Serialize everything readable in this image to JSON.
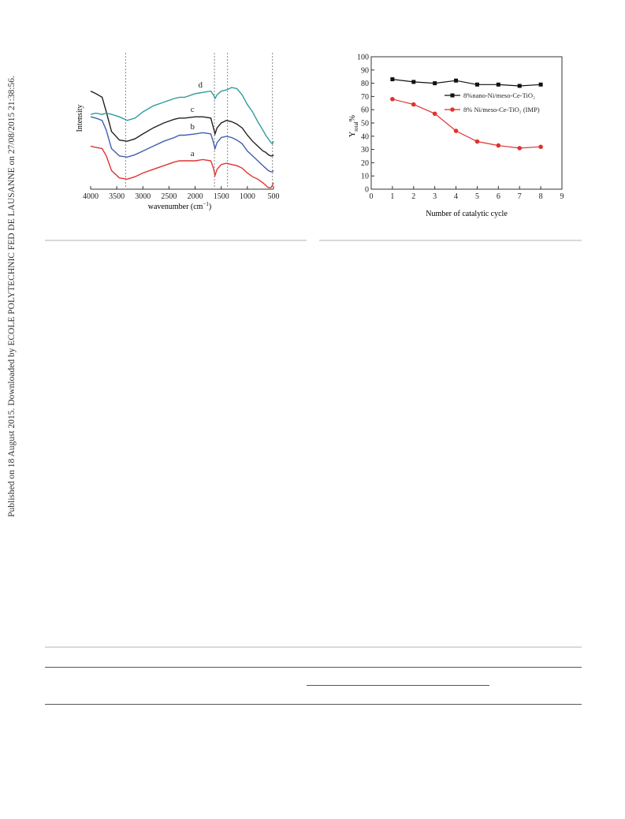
{
  "sidebar": {
    "text": "Published on 18 August 2015. Downloaded by ECOLE POLYTECHNIC FED DE LAUSANNE on 27/08/2015 21:38:56."
  },
  "figure_left": {
    "chart_data": {
      "type": "line",
      "xlabel": "wavenumber (cm⁻¹)",
      "ylabel": "Intensity",
      "x_ticks": [
        4000,
        3500,
        3000,
        2500,
        2000,
        1500,
        1000,
        500
      ],
      "xlim": [
        4000,
        500
      ],
      "x_reversed": true,
      "reference_lines_x": [
        3330,
        1630,
        1380,
        520
      ],
      "series": [
        {
          "name": "a",
          "color": "#e0322f",
          "x": [
            4000,
            3900,
            3780,
            3700,
            3600,
            3450,
            3300,
            3150,
            3000,
            2800,
            2600,
            2400,
            2300,
            2200,
            2000,
            1850,
            1700,
            1650,
            1620,
            1580,
            1500,
            1400,
            1300,
            1200,
            1100,
            1000,
            900,
            800,
            700,
            650,
            600,
            550,
            520,
            500
          ],
          "y": [
            0.32,
            0.31,
            0.3,
            0.24,
            0.12,
            0.06,
            0.05,
            0.07,
            0.1,
            0.13,
            0.16,
            0.19,
            0.2,
            0.2,
            0.2,
            0.21,
            0.2,
            0.14,
            0.08,
            0.13,
            0.17,
            0.18,
            0.17,
            0.16,
            0.14,
            0.1,
            0.07,
            0.05,
            0.02,
            0.0,
            -0.02,
            -0.02,
            0.0,
            0.02
          ]
        },
        {
          "name": "b",
          "color": "#3f5fb3",
          "x": [
            4000,
            3900,
            3780,
            3700,
            3600,
            3450,
            3300,
            3150,
            3000,
            2800,
            2600,
            2400,
            2300,
            2200,
            2000,
            1850,
            1700,
            1650,
            1620,
            1580,
            1500,
            1400,
            1300,
            1200,
            1100,
            1000,
            900,
            800,
            700,
            650,
            600,
            550,
            520,
            500
          ],
          "y": [
            0.56,
            0.55,
            0.53,
            0.45,
            0.3,
            0.24,
            0.23,
            0.25,
            0.28,
            0.32,
            0.36,
            0.39,
            0.41,
            0.41,
            0.42,
            0.43,
            0.42,
            0.35,
            0.3,
            0.35,
            0.39,
            0.4,
            0.39,
            0.37,
            0.34,
            0.28,
            0.24,
            0.2,
            0.16,
            0.14,
            0.12,
            0.11,
            0.11,
            0.12
          ]
        },
        {
          "name": "c",
          "color": "#222222",
          "x": [
            4000,
            3900,
            3780,
            3700,
            3600,
            3450,
            3300,
            3150,
            3000,
            2800,
            2600,
            2400,
            2300,
            2200,
            2000,
            1850,
            1700,
            1650,
            1620,
            1580,
            1500,
            1400,
            1300,
            1200,
            1100,
            1000,
            900,
            800,
            700,
            650,
            600,
            550,
            520,
            500
          ],
          "y": [
            0.77,
            0.75,
            0.72,
            0.6,
            0.44,
            0.37,
            0.36,
            0.38,
            0.42,
            0.47,
            0.51,
            0.54,
            0.55,
            0.55,
            0.56,
            0.56,
            0.55,
            0.47,
            0.42,
            0.47,
            0.51,
            0.53,
            0.52,
            0.5,
            0.47,
            0.41,
            0.36,
            0.32,
            0.28,
            0.27,
            0.25,
            0.24,
            0.24,
            0.25
          ]
        },
        {
          "name": "d",
          "color": "#2e9c99",
          "x": [
            4000,
            3900,
            3780,
            3700,
            3600,
            3450,
            3300,
            3150,
            3000,
            2800,
            2600,
            2400,
            2300,
            2200,
            2000,
            1850,
            1700,
            1650,
            1620,
            1580,
            1500,
            1400,
            1300,
            1200,
            1100,
            1000,
            900,
            800,
            700,
            650,
            600,
            550,
            520,
            500
          ],
          "y": [
            0.58,
            0.59,
            0.58,
            0.59,
            0.58,
            0.56,
            0.53,
            0.55,
            0.6,
            0.65,
            0.68,
            0.71,
            0.72,
            0.72,
            0.75,
            0.76,
            0.77,
            0.74,
            0.71,
            0.74,
            0.77,
            0.78,
            0.8,
            0.79,
            0.74,
            0.66,
            0.6,
            0.52,
            0.45,
            0.41,
            0.38,
            0.35,
            0.34,
            0.36
          ]
        }
      ]
    }
  },
  "figure_right": {
    "chart_data": {
      "type": "line",
      "xlabel": "Number of catalytic cycle",
      "ylabel": "Y",
      "ylabel_subscript": "total",
      "ylabel_suffix": "%",
      "xlim": [
        0,
        9
      ],
      "ylim": [
        0,
        100
      ],
      "x_ticks": [
        0,
        1,
        2,
        3,
        4,
        5,
        6,
        7,
        8,
        9
      ],
      "y_ticks": [
        0,
        10,
        20,
        30,
        40,
        50,
        60,
        70,
        80,
        90,
        100
      ],
      "legend_position": "top-right",
      "series": [
        {
          "name": "8%nano-Ni/meso-Ce-TiO₂",
          "color": "#111111",
          "x": [
            1,
            2,
            3,
            4,
            5,
            6,
            7,
            8
          ],
          "y": [
            83,
            81,
            80,
            82,
            79,
            79,
            78,
            79
          ]
        },
        {
          "name": "8% Ni/meso-Ce-TiO₂ (IMP)",
          "color": "#e0322f",
          "x": [
            1,
            2,
            3,
            4,
            5,
            6,
            7,
            8
          ],
          "y": [
            68,
            64,
            57,
            44,
            36,
            33,
            31,
            32
          ]
        }
      ]
    }
  }
}
